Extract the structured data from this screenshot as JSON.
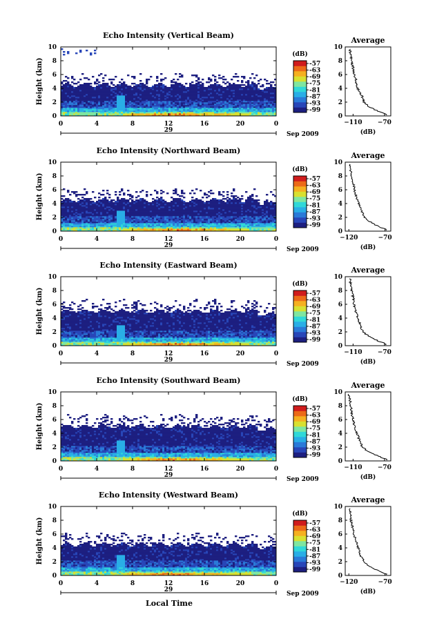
{
  "figure": {
    "xlabel": "Local Time",
    "date_label": "Sep 2009",
    "day_label": "29",
    "colorbar_unit": "(dB)",
    "avg_title": "Average",
    "avg_xlabel": "(dB)"
  },
  "colors": {
    "colormap": [
      "#1d1f80",
      "#2846b8",
      "#2a7ad8",
      "#29aee6",
      "#30d8d8",
      "#7fe6a0",
      "#d8e030",
      "#f5b020",
      "#ec6a18",
      "#d01c1c"
    ]
  },
  "chart_data": [
    {
      "type": "heatmap",
      "title": "Echo Intensity (Vertical Beam)",
      "ylabel": "Height (km)",
      "x_ticks": [
        "0",
        "4",
        "8",
        "12",
        "16",
        "20",
        "0"
      ],
      "xlim": [
        0,
        24
      ],
      "y_ticks": [
        "0",
        "2",
        "4",
        "6",
        "8",
        "10"
      ],
      "ylim": [
        0,
        10
      ],
      "colorbar_ticks": [
        "-57",
        "-63",
        "-69",
        "-75",
        "-81",
        "-87",
        "-93",
        "-99"
      ],
      "echo_top_km": 4.5,
      "avg_xticks": [
        "-110",
        "-70"
      ],
      "avg_xlim": [
        -120,
        -62
      ],
      "avg_profile": {
        "height_km": [
          0.2,
          0.5,
          1,
          1.5,
          2,
          3,
          4,
          5,
          6,
          7,
          8,
          9,
          9.6
        ],
        "db": [
          -66,
          -74,
          -84,
          -92,
          -96,
          -99,
          -104,
          -106,
          -108,
          -110,
          -112,
          -113,
          -114
        ]
      }
    },
    {
      "type": "heatmap",
      "title": "Echo Intensity (Northward Beam)",
      "ylabel": "Height (km)",
      "x_ticks": [
        "0",
        "4",
        "8",
        "12",
        "16",
        "20",
        "0"
      ],
      "xlim": [
        0,
        24
      ],
      "y_ticks": [
        "0",
        "2",
        "4",
        "6",
        "8",
        "10"
      ],
      "ylim": [
        0,
        10
      ],
      "colorbar_ticks": [
        "-57",
        "-63",
        "-69",
        "-75",
        "-81",
        "-87",
        "-93",
        "-99"
      ],
      "echo_top_km": 4.5,
      "avg_xticks": [
        "-120",
        "-70"
      ],
      "avg_xlim": [
        -125,
        -62
      ],
      "avg_profile": {
        "height_km": [
          0.2,
          0.5,
          1,
          1.5,
          2,
          3,
          4,
          5,
          6,
          7,
          8,
          9,
          9.6
        ],
        "db": [
          -67,
          -75,
          -85,
          -93,
          -98,
          -103,
          -106,
          -110,
          -112,
          -114,
          -116,
          -118,
          -119
        ]
      }
    },
    {
      "type": "heatmap",
      "title": "Echo Intensity (Eastward Beam)",
      "ylabel": "Height (km)",
      "x_ticks": [
        "0",
        "4",
        "8",
        "12",
        "16",
        "20",
        "0"
      ],
      "xlim": [
        0,
        24
      ],
      "y_ticks": [
        "0",
        "2",
        "4",
        "6",
        "8",
        "10"
      ],
      "ylim": [
        0,
        10
      ],
      "colorbar_ticks": [
        "-57",
        "-63",
        "-69",
        "-75",
        "-81",
        "-87",
        "-93",
        "-99"
      ],
      "echo_top_km": 5.0,
      "avg_xticks": [
        "-110",
        "-70"
      ],
      "avg_xlim": [
        -120,
        -62
      ],
      "avg_profile": {
        "height_km": [
          0.2,
          0.5,
          1,
          1.5,
          2,
          3,
          4,
          5,
          6,
          7,
          8,
          9,
          9.6
        ],
        "db": [
          -67,
          -74,
          -84,
          -92,
          -97,
          -101,
          -104,
          -107,
          -109,
          -110,
          -112,
          -113,
          -114
        ]
      }
    },
    {
      "type": "heatmap",
      "title": "Echo Intensity (Southward Beam)",
      "ylabel": "Height (km)",
      "x_ticks": [
        "0",
        "4",
        "8",
        "12",
        "16",
        "20",
        "0"
      ],
      "xlim": [
        0,
        24
      ],
      "y_ticks": [
        "0",
        "2",
        "4",
        "6",
        "8",
        "10"
      ],
      "ylim": [
        0,
        10
      ],
      "colorbar_ticks": [
        "-57",
        "-63",
        "-69",
        "-75",
        "-81",
        "-87",
        "-93",
        "-99"
      ],
      "echo_top_km": 5.0,
      "avg_xticks": [
        "-110",
        "-70"
      ],
      "avg_xlim": [
        -120,
        -62
      ],
      "avg_profile": {
        "height_km": [
          0.2,
          0.5,
          1,
          1.5,
          2,
          3,
          4,
          5,
          6,
          7,
          8,
          9,
          9.6
        ],
        "db": [
          -66,
          -74,
          -84,
          -93,
          -98,
          -102,
          -105,
          -108,
          -110,
          -112,
          -113,
          -114,
          -115
        ]
      }
    },
    {
      "type": "heatmap",
      "title": "Echo Intensity (Westward Beam)",
      "ylabel": "Height (km)",
      "x_ticks": [
        "0",
        "4",
        "8",
        "12",
        "16",
        "20",
        "0"
      ],
      "xlim": [
        0,
        24
      ],
      "y_ticks": [
        "0",
        "2",
        "4",
        "6",
        "8",
        "10"
      ],
      "ylim": [
        0,
        10
      ],
      "colorbar_ticks": [
        "-57",
        "-63",
        "-69",
        "-75",
        "-81",
        "-87",
        "-93",
        "-99"
      ],
      "echo_top_km": 4.5,
      "avg_xticks": [
        "-120",
        "-70"
      ],
      "avg_xlim": [
        -125,
        -62
      ],
      "avg_profile": {
        "height_km": [
          0.2,
          0.5,
          1,
          1.5,
          2,
          3,
          4,
          5,
          6,
          7,
          8,
          9,
          9.6
        ],
        "db": [
          -67,
          -76,
          -86,
          -94,
          -99,
          -104,
          -107,
          -110,
          -113,
          -115,
          -117,
          -118,
          -119
        ]
      }
    }
  ]
}
